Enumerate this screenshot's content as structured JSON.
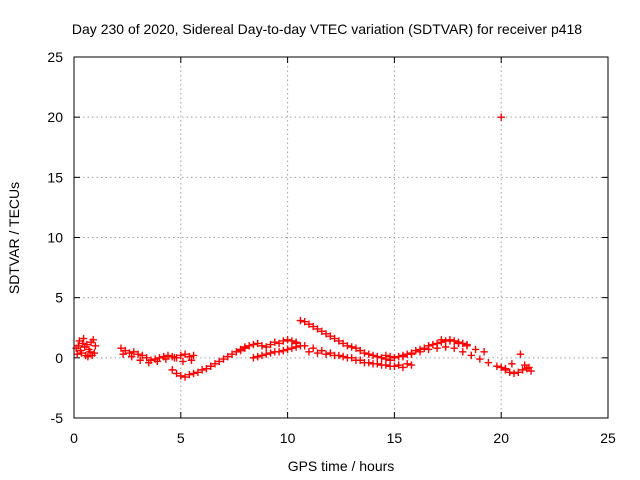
{
  "chart_data": {
    "type": "scatter",
    "title": "Day 230 of 2020, Sidereal Day-to-day VTEC variation (SDTVAR) for receiver p418",
    "xlabel": "GPS time / hours",
    "ylabel": "SDTVAR / TECUs",
    "xlim": [
      0,
      25
    ],
    "ylim": [
      -5,
      25
    ],
    "xticks": [
      0,
      5,
      10,
      15,
      20,
      25
    ],
    "yticks": [
      -5,
      0,
      5,
      10,
      15,
      20,
      25
    ],
    "grid": true,
    "marker": "+",
    "color": "#ff0000",
    "series": [
      {
        "name": "SDTVAR",
        "x": [
          0.1,
          0.2,
          0.3,
          0.4,
          0.5,
          0.6,
          0.7,
          0.8,
          0.9,
          1.0,
          0.15,
          0.35,
          0.55,
          0.75,
          0.95,
          0.25,
          0.45,
          0.65,
          0.85,
          2.2,
          2.4,
          2.6,
          2.8,
          3.0,
          3.2,
          3.4,
          3.6,
          3.8,
          4.0,
          4.2,
          4.4,
          4.6,
          4.8,
          5.0,
          5.2,
          5.4,
          5.6,
          2.3,
          2.7,
          3.1,
          3.5,
          3.9,
          4.3,
          4.7,
          5.1,
          5.5,
          4.6,
          4.8,
          5.0,
          5.2,
          5.4,
          5.6,
          5.8,
          6.0,
          6.2,
          6.4,
          6.6,
          6.8,
          7.0,
          7.2,
          7.4,
          7.6,
          7.8,
          8.0,
          7.8,
          8.0,
          8.2,
          8.4,
          8.6,
          8.8,
          9.0,
          9.2,
          9.4,
          9.6,
          9.8,
          10.0,
          10.2,
          10.4,
          8.4,
          8.6,
          8.8,
          9.0,
          9.2,
          9.4,
          9.6,
          9.8,
          10.0,
          10.2,
          10.4,
          10.6,
          10.6,
          10.8,
          11.0,
          11.2,
          11.4,
          11.6,
          11.8,
          12.0,
          12.2,
          12.4,
          12.6,
          12.8,
          13.0,
          13.2,
          13.4,
          13.6,
          13.8,
          14.0,
          14.2,
          14.4,
          14.6,
          14.8,
          10.4,
          10.8,
          11.2,
          11.6,
          12.0,
          12.4,
          12.8,
          13.2,
          13.6,
          14.0,
          14.4,
          14.8,
          15.2,
          15.6,
          11.0,
          11.4,
          11.8,
          12.2,
          12.6,
          13.0,
          13.4,
          13.8,
          14.2,
          14.6,
          15.0,
          15.4,
          15.8,
          14.6,
          14.8,
          15.0,
          15.2,
          15.4,
          15.6,
          15.8,
          16.0,
          16.2,
          16.4,
          16.6,
          16.8,
          17.0,
          17.2,
          17.4,
          17.6,
          17.8,
          18.0,
          18.2,
          18.4,
          15.4,
          15.8,
          16.2,
          16.6,
          17.0,
          17.4,
          17.8,
          18.2,
          18.6,
          19.0,
          19.4,
          19.8,
          20.2,
          17.2,
          17.6,
          18.0,
          18.4,
          18.8,
          19.2,
          20.0,
          20.2,
          20.4,
          20.6,
          20.8,
          21.0,
          21.2,
          21.4,
          20.5,
          20.9,
          21.1,
          21.3,
          20.0
        ],
        "y": [
          0.8,
          1.0,
          0.6,
          1.2,
          0.9,
          1.1,
          0.7,
          1.3,
          1.5,
          1.0,
          0.3,
          0.4,
          0.2,
          0.5,
          0.4,
          1.4,
          1.6,
          0.1,
          0.2,
          0.8,
          0.6,
          0.4,
          0.5,
          0.3,
          0.2,
          0.0,
          -0.2,
          -0.1,
          0.0,
          0.1,
          0.2,
          0.1,
          0.0,
          0.2,
          0.3,
          0.1,
          0.2,
          0.3,
          0.1,
          -0.2,
          -0.4,
          -0.3,
          -0.1,
          0.0,
          -0.3,
          -0.2,
          -1.0,
          -1.3,
          -1.5,
          -1.6,
          -1.4,
          -1.3,
          -1.2,
          -1.0,
          -0.9,
          -0.7,
          -0.5,
          -0.3,
          -0.1,
          0.1,
          0.3,
          0.5,
          0.7,
          0.9,
          0.6,
          0.8,
          1.0,
          1.1,
          1.2,
          1.0,
          0.9,
          1.1,
          1.3,
          1.2,
          1.4,
          1.5,
          1.4,
          1.3,
          0.0,
          0.1,
          0.2,
          0.3,
          0.4,
          0.5,
          0.5,
          0.6,
          0.7,
          0.8,
          0.9,
          1.0,
          3.1,
          3.0,
          2.8,
          2.6,
          2.4,
          2.2,
          2.0,
          1.8,
          1.6,
          1.4,
          1.2,
          1.0,
          0.9,
          0.8,
          0.6,
          0.4,
          0.3,
          0.2,
          0.1,
          0.0,
          -0.1,
          -0.2,
          1.2,
          1.0,
          0.8,
          0.6,
          0.4,
          0.2,
          0.0,
          -0.2,
          -0.4,
          -0.5,
          -0.6,
          -0.7,
          -0.6,
          -0.5,
          0.5,
          0.4,
          0.3,
          0.2,
          0.1,
          0.0,
          -0.2,
          -0.4,
          -0.5,
          -0.6,
          -0.7,
          -0.8,
          -0.6,
          0.2,
          0.1,
          0.0,
          0.1,
          0.2,
          0.3,
          0.4,
          0.6,
          0.7,
          0.8,
          1.0,
          1.1,
          1.2,
          1.3,
          1.4,
          1.5,
          1.4,
          1.3,
          1.2,
          1.1,
          0.1,
          0.3,
          0.5,
          0.7,
          0.8,
          0.9,
          0.8,
          0.5,
          0.2,
          -0.1,
          -0.4,
          -0.7,
          -0.9,
          1.5,
          1.4,
          1.2,
          1.0,
          0.7,
          0.5,
          -0.8,
          -1.0,
          -1.2,
          -1.3,
          -1.2,
          -1.0,
          -0.9,
          -1.1,
          -0.5,
          0.3,
          -0.6,
          -0.8,
          20.0
        ]
      }
    ]
  }
}
